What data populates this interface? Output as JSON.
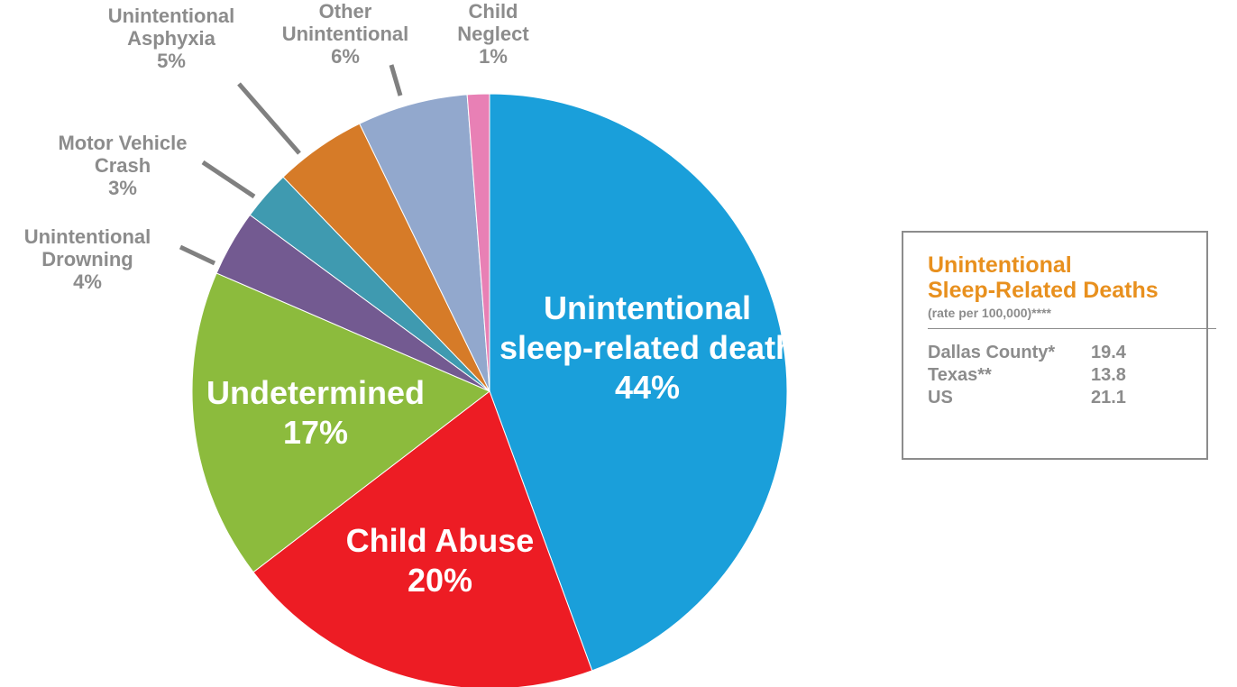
{
  "chart_data": {
    "type": "pie",
    "start_angle_deg": 0,
    "direction": "clockwise",
    "slices": [
      {
        "label_lines": [
          "Unintentional",
          "sleep-related death"
        ],
        "value_label": "44%",
        "value": 44.4,
        "color": "#1a9fda",
        "label_style": "inside"
      },
      {
        "label_lines": [
          "Child Abuse"
        ],
        "value_label": "20%",
        "value": 20.2,
        "color": "#ed1c24",
        "label_style": "inside"
      },
      {
        "label_lines": [
          "Undetermined"
        ],
        "value_label": "17%",
        "value": 16.9,
        "color": "#8cbb3d",
        "label_style": "inside"
      },
      {
        "label_lines": [
          "Unintentional",
          "Drowning"
        ],
        "value_label": "4%",
        "value": 3.6,
        "color": "#735a91",
        "label_style": "outside"
      },
      {
        "label_lines": [
          "Motor Vehicle",
          "Crash"
        ],
        "value_label": "3%",
        "value": 2.7,
        "color": "#3f9ab0",
        "label_style": "outside"
      },
      {
        "label_lines": [
          "Unintentional",
          "Asphyxia"
        ],
        "value_label": "5%",
        "value": 5.0,
        "color": "#d67b28",
        "label_style": "outside"
      },
      {
        "label_lines": [
          "Other",
          "Unintentional"
        ],
        "value_label": "6%",
        "value": 6.0,
        "color": "#92a8cd",
        "label_style": "outside"
      },
      {
        "label_lines": [
          "Child",
          "Neglect"
        ],
        "value_label": "1%",
        "value": 1.2,
        "color": "#e880b5",
        "label_style": "outside"
      }
    ]
  },
  "rate_box": {
    "title_line1": "Unintentional",
    "title_line2": "Sleep-Related Deaths",
    "subtitle": "(rate per 100,000)****",
    "rows": [
      {
        "label": "Dallas County*",
        "value": "19.4"
      },
      {
        "label": "Texas**",
        "value": "13.8"
      },
      {
        "label": "US",
        "value": "21.1"
      }
    ]
  }
}
